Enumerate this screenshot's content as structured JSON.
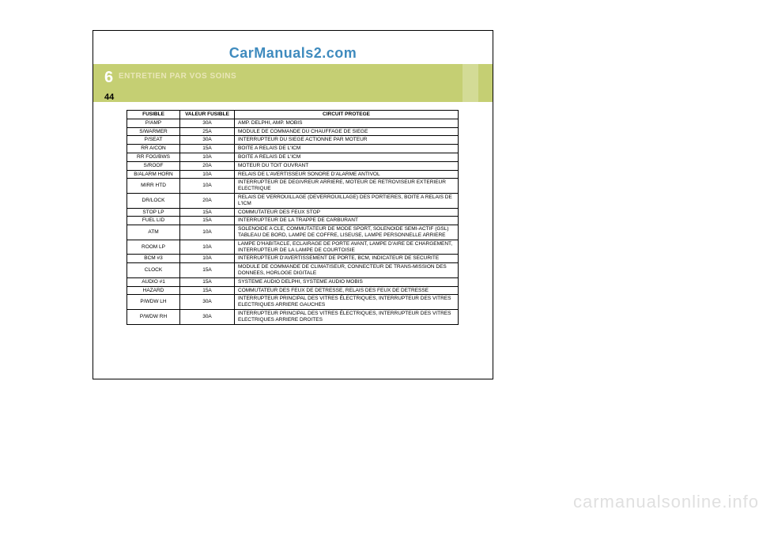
{
  "watermark_top": "CarManuals2.com",
  "watermark_bottom": "carmanualsonline.info",
  "chapter_num": "6",
  "section_title": "ENTRETIEN PAR VOS SOINS",
  "page_num": "44",
  "table": {
    "header": {
      "fuse": "FUSIBLE",
      "rating": "VALEUR FUSIBLE",
      "circuit": "CIRCUIT PROTEGE"
    },
    "rows": [
      {
        "fuse": "P/AMP",
        "rating": "30A",
        "circuit": "AMP. DELPHI, AMP. MOBIS"
      },
      {
        "fuse": "S/WARMER",
        "rating": "25A",
        "circuit": "MODULE DE COMMANDE DU CHAUFFAGE DE SIEGE"
      },
      {
        "fuse": "P/SEAT",
        "rating": "30A",
        "circuit": "INTERRUPTEUR DU SIEGE ACTIONNE PAR MOTEUR"
      },
      {
        "fuse": "RR A/CON",
        "rating": "15A",
        "circuit": "BOITE A RELAIS DE L'ICM"
      },
      {
        "fuse": "RR FOG/BWS",
        "rating": "10A",
        "circuit": "BOITE A RELAIS DE L'ICM"
      },
      {
        "fuse": "S/ROOF",
        "rating": "20A",
        "circuit": "MOTEUR DU TOIT OUVRANT"
      },
      {
        "fuse": "B/ALARM HORN",
        "rating": "10A",
        "circuit": "RELAIS DE L'AVERTISSEUR SONORE D'ALARME ANTIVOL"
      },
      {
        "fuse": "MIRR HTD",
        "rating": "10A",
        "circuit": "INTERRUPTEUR DE DEGIVREUR ARRIERE, MOTEUR DE RETROVISEUR EXTERIEUR ELECTRIQUE"
      },
      {
        "fuse": "DR/LOCK",
        "rating": "20A",
        "circuit": "RELAIS DE VERROUILLAGE (DEVERROUILLAGE) DES PORTIERES, BOITE A RELAIS DE L'ICM"
      },
      {
        "fuse": "STOP LP",
        "rating": "15A",
        "circuit": "COMMUTATEUR DES FEUX STOP"
      },
      {
        "fuse": "FUEL LID",
        "rating": "15A",
        "circuit": "INTERRUPTEUR DE LA TRAPPE DE CARBURANT"
      },
      {
        "fuse": "ATM",
        "rating": "10A",
        "circuit": "SOLENOIDE A CLE, COMMUTATEUR DE MODE SPORT, SOLENOIDE SEMI-ACTIF (GSL) TABLEAU DE BORD, LAMPE DE COFFRE, LISEUSE, LAMPE PERSONNELLE ARRIERE"
      },
      {
        "fuse": "ROOM LP",
        "rating": "10A",
        "circuit": "LAMPE D'HABITACLE, ECLAIRAGE DE PORTE AVANT, LAMPE D'AIRE DE CHARGEMENT, INTERRUPTEUR DE LA LAMPE DE COURTOISIE"
      },
      {
        "fuse": "BCM #3",
        "rating": "10A",
        "circuit": "INTERRUPTEUR D'AVERTISSEMENT DE PORTE, BCM, INDICATEUR DE SECURITE"
      },
      {
        "fuse": "CLOCK",
        "rating": "15A",
        "circuit": "MODULE DE COMMANDE DE CLIMATISEUR, CONNECTEUR DE TRANS-MISSION DES DONNEES, HORLOGE DIGITALE"
      },
      {
        "fuse": "AUDIO #1",
        "rating": "15A",
        "circuit": "SYSTEME AUDIO DELPHI, SYSTEME AUDIO MOBIS"
      },
      {
        "fuse": "HAZARD",
        "rating": "15A",
        "circuit": "COMMUTATEUR DES FEUX DE DETRESSE, RELAIS DES FEUX DE DETRESSE"
      },
      {
        "fuse": "P/WDW LH",
        "rating": "30A",
        "circuit": "INTERRUPTEUR PRINCIPAL DES VITRES ÉLECTRIQUES, INTERRUPTEUR DES VITRES ELECTRIQUES ARRIERE GAUCHES"
      },
      {
        "fuse": "P/WDW RH",
        "rating": "30A",
        "circuit": "INTERRUPTEUR PRINCIPAL DES VITRES ÉLECTRIQUES, INTERRUPTEUR DES VITRES ELECTRIQUES ARRIERE DROITES"
      }
    ]
  }
}
